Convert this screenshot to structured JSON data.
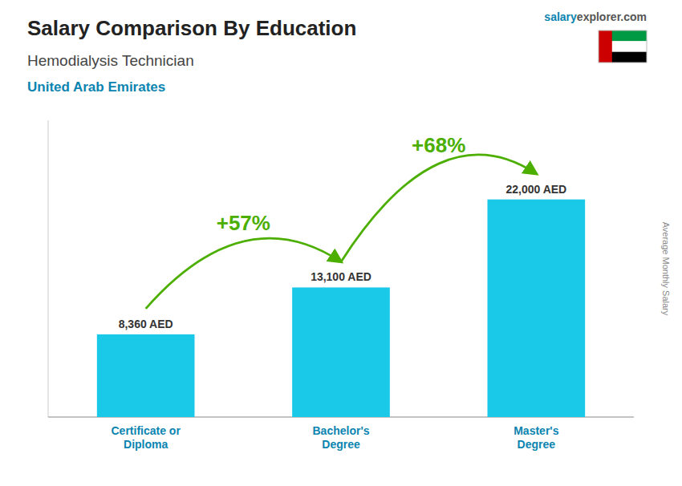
{
  "chart_data": {
    "type": "bar",
    "title": "Salary Comparison By Education",
    "subtitle": [
      "Hemodialysis Technician",
      "United Arab Emirates"
    ],
    "watermark": [
      "salary",
      "explorer.com"
    ],
    "y_label": "Average Monthly Salary",
    "categories": [
      "Certificate or\nDiploma",
      "Bachelor's\nDegree",
      "Master's\nDegree"
    ],
    "values": [
      8360,
      13100,
      22000
    ],
    "value_labels": [
      "8,360 AED",
      "13,100 AED",
      "22,000 AED"
    ],
    "annotations": [
      "+57%",
      "+68%"
    ],
    "color": "#1ac8e8",
    "ylim": [
      0,
      30000
    ],
    "grid": false,
    "data_labels": true,
    "tick_labels": "x"
  }
}
